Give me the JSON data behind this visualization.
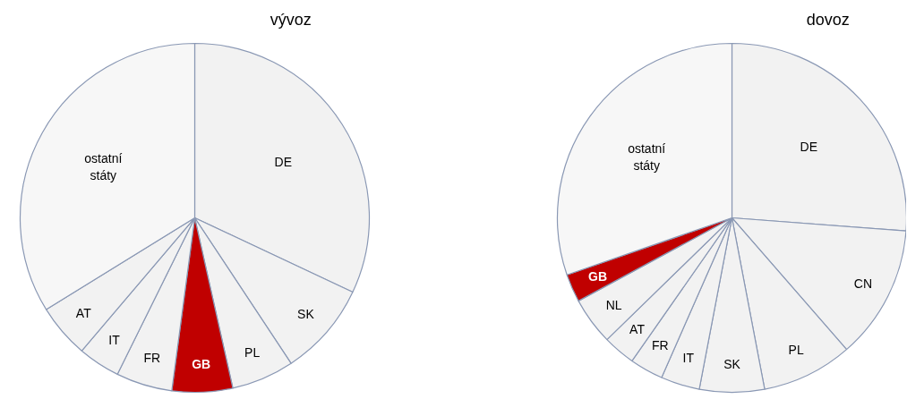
{
  "chart_data": [
    {
      "type": "pie",
      "title": "vývoz",
      "categories": [
        "DE",
        "SK",
        "PL",
        "GB",
        "FR",
        "IT",
        "AT",
        "ostatní\nstáty"
      ],
      "values": [
        32,
        8.7,
        5.8,
        5.6,
        5.2,
        3.9,
        5,
        33.8
      ],
      "colors": [
        "#f2f2f2",
        "#f2f2f2",
        "#f2f2f2",
        "#c00000",
        "#f2f2f2",
        "#f2f2f2",
        "#f2f2f2",
        "#f7f7f7"
      ]
    },
    {
      "type": "pie",
      "title": "dovoz",
      "categories": [
        "DE",
        "CN",
        "PL",
        "SK",
        "IT",
        "FR",
        "AT",
        "NL",
        "GB",
        "ostatní\nstáty"
      ],
      "values": [
        26.2,
        12.4,
        8.4,
        6,
        3.6,
        3.1,
        3,
        4.4,
        2.6,
        30.3
      ],
      "colors": [
        "#f2f2f2",
        "#f2f2f2",
        "#f2f2f2",
        "#f2f2f2",
        "#f2f2f2",
        "#f2f2f2",
        "#f2f2f2",
        "#f2f2f2",
        "#c00000",
        "#f7f7f7"
      ]
    }
  ]
}
